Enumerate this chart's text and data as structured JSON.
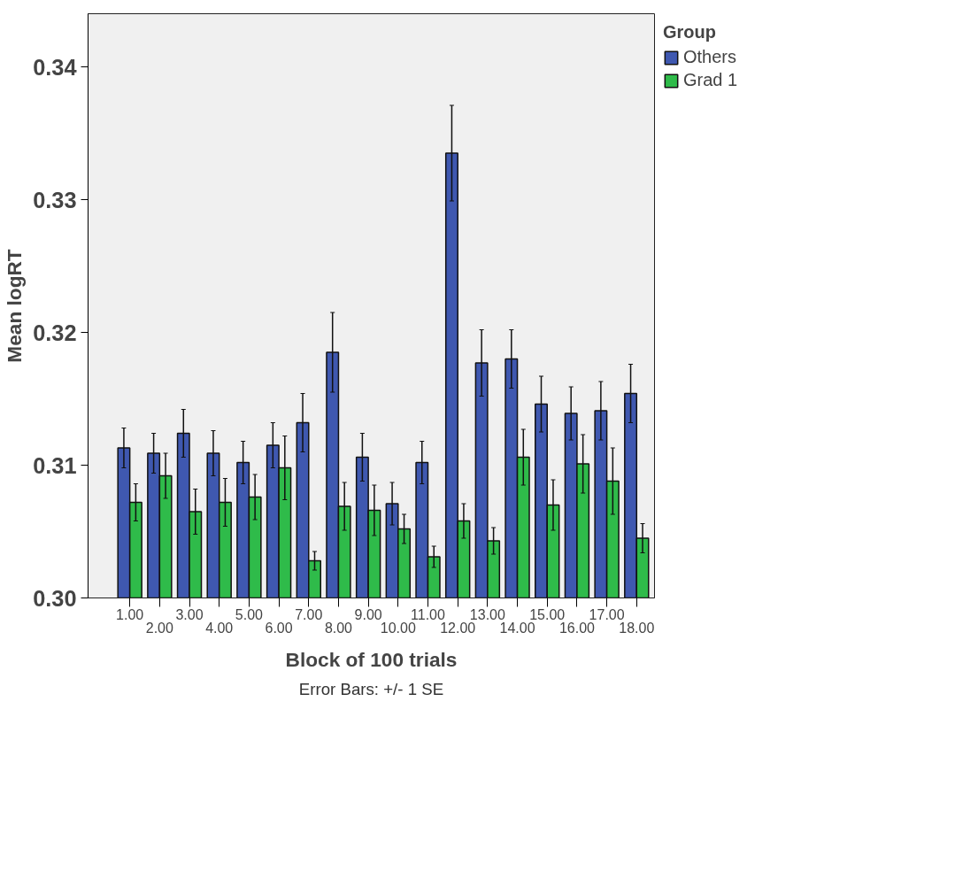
{
  "chart_data": {
    "type": "bar",
    "xlabel": "Block of 100 trials",
    "ylabel": "Mean logRT",
    "legend_title": "Group",
    "legend": "top right",
    "grid": false,
    "categories": [
      "1.00",
      "2.00",
      "3.00",
      "4.00",
      "5.00",
      "6.00",
      "7.00",
      "8.00",
      "9.00",
      "10.00",
      "11.00",
      "12.00",
      "13.00",
      "14.00",
      "15.00",
      "16.00",
      "17.00",
      "18.00"
    ],
    "ylim": [
      0.3,
      0.344
    ],
    "yticks": [
      {
        "value": 0.3,
        "label": "0.30"
      },
      {
        "value": 0.31,
        "label": "0.31"
      },
      {
        "value": 0.32,
        "label": "0.32"
      },
      {
        "value": 0.33,
        "label": "0.33"
      },
      {
        "value": 0.34,
        "label": "0.34"
      }
    ],
    "series": [
      {
        "name": "Others",
        "color": "#3f58b0",
        "values": [
          0.3113,
          0.3109,
          0.3124,
          0.3109,
          0.3102,
          0.3115,
          0.3132,
          0.3185,
          0.3106,
          0.3071,
          0.3102,
          0.3335,
          0.3177,
          0.318,
          0.3146,
          0.3139,
          0.3141,
          0.3154
        ],
        "errors": [
          0.0015,
          0.0015,
          0.0018,
          0.0017,
          0.0016,
          0.0017,
          0.0022,
          0.003,
          0.0018,
          0.0016,
          0.0016,
          0.0036,
          0.0025,
          0.0022,
          0.0021,
          0.002,
          0.0022,
          0.0022
        ]
      },
      {
        "name": "Grad 1",
        "color": "#2fbb4a",
        "values": [
          0.3072,
          0.3092,
          0.3065,
          0.3072,
          0.3076,
          0.3098,
          0.3028,
          0.3069,
          0.3066,
          0.3052,
          0.3031,
          0.3058,
          0.3043,
          0.3106,
          0.307,
          0.3101,
          0.3088,
          0.3045
        ],
        "errors": [
          0.0014,
          0.0017,
          0.0017,
          0.0018,
          0.0017,
          0.0024,
          0.0007,
          0.0018,
          0.0019,
          0.0011,
          0.0008,
          0.0013,
          0.001,
          0.0021,
          0.0019,
          0.0022,
          0.0025,
          0.0011
        ]
      }
    ],
    "annotations": [
      "Error Bars: +/- 1 SE"
    ]
  }
}
